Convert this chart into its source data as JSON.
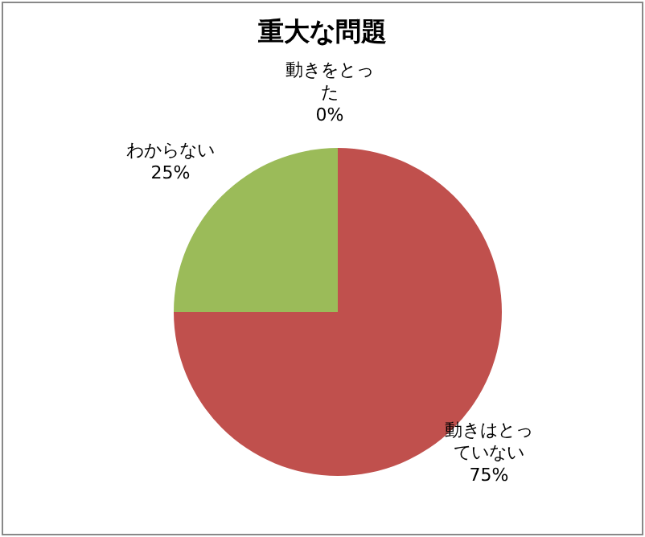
{
  "chart_data": {
    "type": "pie",
    "title": "重大な問題",
    "categories": [
      "動きをとった",
      "動きはとっていない",
      "わからない"
    ],
    "values": [
      0,
      75,
      25
    ],
    "colors": [
      "#4f81bd",
      "#c0504d",
      "#9bbb59"
    ],
    "value_labels": [
      "0%",
      "75%",
      "25%"
    ]
  }
}
